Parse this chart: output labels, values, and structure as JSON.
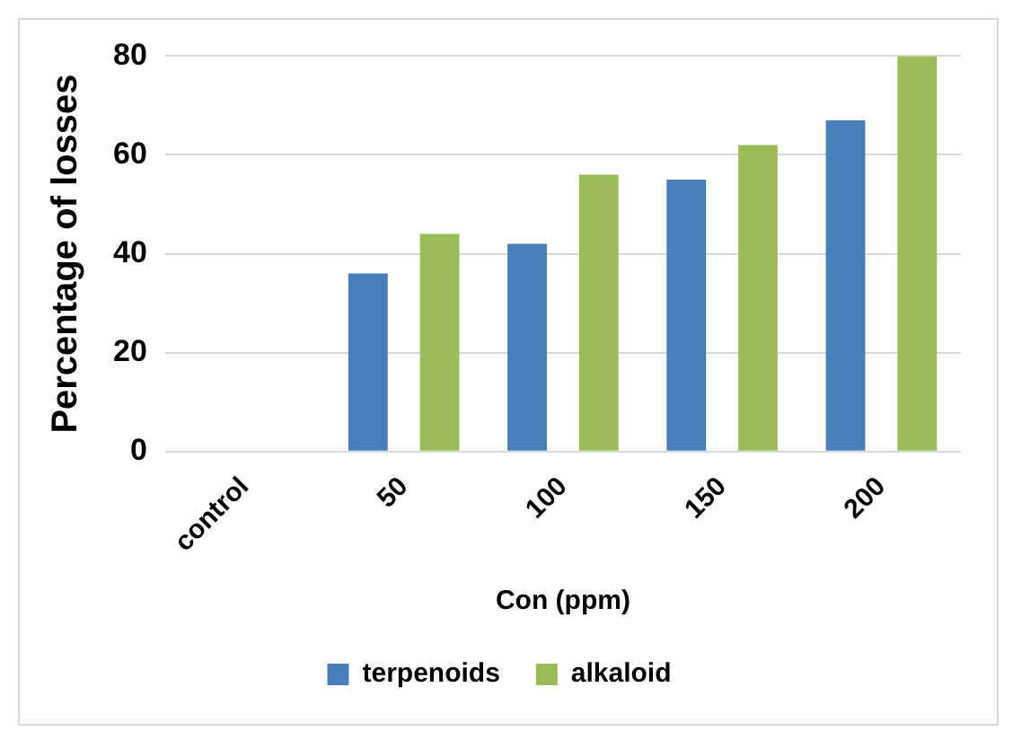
{
  "chart_data": {
    "type": "bar",
    "xlabel": "Con (ppm)",
    "ylabel": "Percentage of losses",
    "categories": [
      "control",
      "50",
      "100",
      "150",
      "200"
    ],
    "series": [
      {
        "name": "terpenoids",
        "color": "#4a7ebb",
        "values": [
          0,
          36,
          42,
          55,
          67
        ]
      },
      {
        "name": "alkaloid",
        "color": "#9bbb59",
        "values": [
          0,
          44,
          56,
          62,
          80
        ]
      }
    ],
    "ylim": [
      0,
      80
    ],
    "yticks": [
      0,
      20,
      40,
      60,
      80
    ],
    "grid": "y",
    "legend": "bottom"
  }
}
